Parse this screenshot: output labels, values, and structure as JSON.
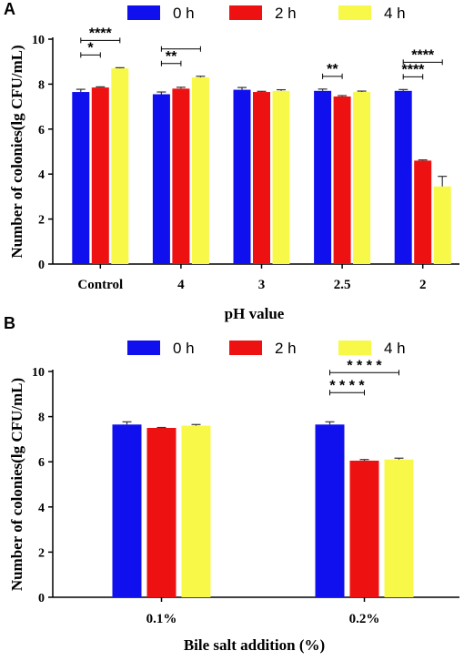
{
  "colors": {
    "0 h": "#1010ee",
    "2 h": "#ee1111",
    "4 h": "#f8f848"
  },
  "chart_data": [
    {
      "panel": "A",
      "type": "bar",
      "xlabel": "pH value",
      "ylabel": "Number of colonies(lg CFU/mL)",
      "ylim": [
        0,
        10
      ],
      "yticks": [
        "0",
        "2",
        "4",
        "6",
        "8",
        "10"
      ],
      "categories": [
        "Control",
        "4",
        "3",
        "2.5",
        "2"
      ],
      "legend_position": "top",
      "series": [
        {
          "name": "0 h",
          "values": [
            7.65,
            7.55,
            7.75,
            7.7,
            7.7
          ],
          "errors": [
            0.12,
            0.1,
            0.1,
            0.08,
            0.06
          ]
        },
        {
          "name": "2 h",
          "values": [
            7.85,
            7.8,
            7.65,
            7.45,
            4.6
          ],
          "errors": [
            0.03,
            0.06,
            0.03,
            0.04,
            0.03
          ]
        },
        {
          "name": "4 h",
          "values": [
            8.7,
            8.3,
            7.7,
            7.65,
            3.45
          ],
          "errors": [
            0.03,
            0.05,
            0.05,
            0.04,
            0.45
          ]
        }
      ],
      "significance": [
        {
          "category": 0,
          "from": 0,
          "to": 1,
          "label": "*"
        },
        {
          "category": 0,
          "from": 0,
          "to": 2,
          "label": "****"
        },
        {
          "category": 1,
          "from": 0,
          "to": 1,
          "label": "**"
        },
        {
          "category": 1,
          "from": 0,
          "to": 2,
          "label": ""
        },
        {
          "category": 3,
          "from": 0,
          "to": 1,
          "label": "**"
        },
        {
          "category": 4,
          "from": 0,
          "to": 1,
          "label": "****"
        },
        {
          "category": 4,
          "from": 0,
          "to": 2,
          "label": "****"
        }
      ]
    },
    {
      "panel": "B",
      "type": "bar",
      "xlabel": "Bile salt addition (%)",
      "ylabel": "Number of colonies(lg CFU/mL)",
      "ylim": [
        0,
        10
      ],
      "yticks": [
        "0",
        "2",
        "4",
        "6",
        "8",
        "10"
      ],
      "categories": [
        "0.1%",
        "0.2%"
      ],
      "legend_position": "top",
      "series": [
        {
          "name": "0 h",
          "values": [
            7.65,
            7.65
          ],
          "errors": [
            0.12,
            0.12
          ]
        },
        {
          "name": "2 h",
          "values": [
            7.5,
            6.05
          ],
          "errors": [
            0.02,
            0.05
          ]
        },
        {
          "name": "4 h",
          "values": [
            7.6,
            6.1
          ],
          "errors": [
            0.05,
            0.06
          ]
        }
      ],
      "significance": [
        {
          "category": 1,
          "from": 0,
          "to": 1,
          "label": "* * * *"
        },
        {
          "category": 1,
          "from": 0,
          "to": 2,
          "label": "* * * *"
        }
      ]
    }
  ]
}
